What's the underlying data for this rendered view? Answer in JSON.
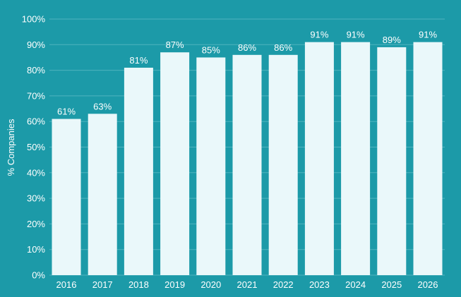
{
  "chart_data": {
    "type": "bar",
    "categories": [
      "2016",
      "2017",
      "2018",
      "2019",
      "2020",
      "2021",
      "2022",
      "2023",
      "2024",
      "2025",
      "2026"
    ],
    "values": [
      61,
      63,
      81,
      87,
      85,
      86,
      86,
      91,
      91,
      89,
      91
    ],
    "data_labels": [
      "61%",
      "63%",
      "81%",
      "87%",
      "85%",
      "86%",
      "86%",
      "91%",
      "91%",
      "89%",
      "91%"
    ],
    "title": "",
    "xlabel": "",
    "ylabel": "% Companies",
    "ylim": [
      0,
      100
    ],
    "yticks": [
      "0%",
      "10%",
      "20%",
      "30%",
      "40%",
      "50%",
      "60%",
      "70%",
      "80%",
      "90%",
      "100%"
    ],
    "grid": true,
    "legend": "none"
  },
  "colors": {
    "background": "#1c9aa8",
    "bar": "#eaf8fa",
    "gridline": "#4fb3be",
    "text": "#ffffff"
  }
}
